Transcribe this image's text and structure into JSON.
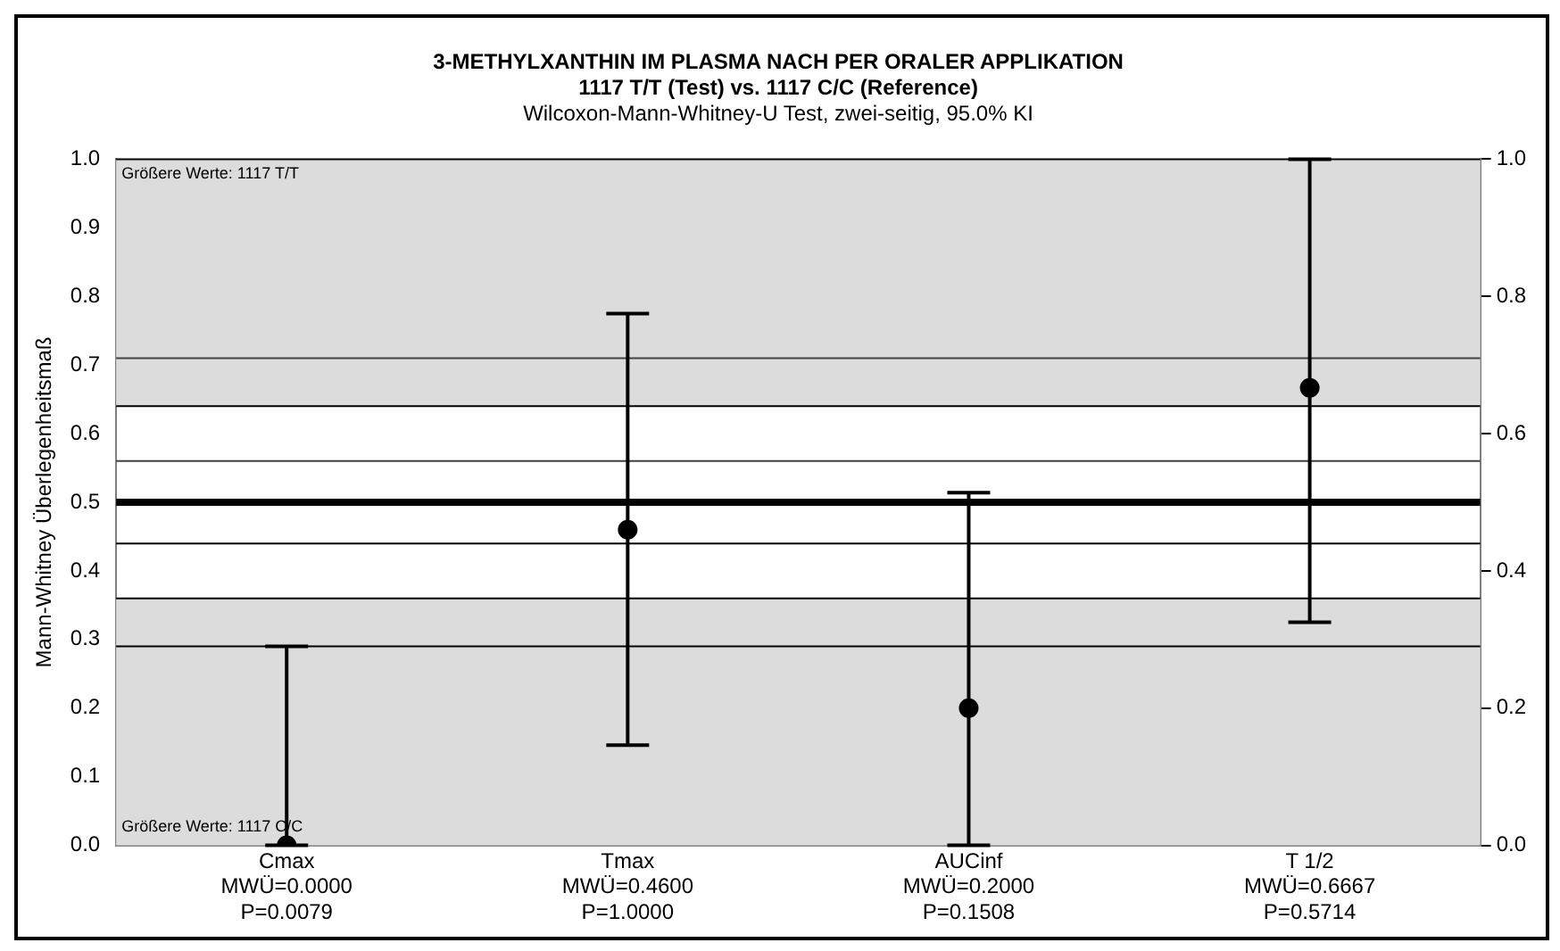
{
  "chart_data": {
    "type": "scatter",
    "title": "3-METHYLXANTHIN IM PLASMA NACH PER ORALER APPLIKATION\n1117 T/T (Test) vs. 1117 C/C (Reference)",
    "subtitle": "Wilcoxon-Mann-Whitney-U Test, zwei-seitig, 95.0% KI",
    "ylabel": "Mann-Whitney Überlegenheitsmaß",
    "categories": [
      "Cmax\nMWÜ=0.0000\nP=0.0079",
      "Tmax\nMWÜ=0.4600\nP=1.0000",
      "AUCinf\nMWÜ=0.2000\nP=0.1508",
      "T 1/2\nMWÜ=0.6667\nP=0.5714"
    ],
    "values": [
      0,
      0.46,
      0.2,
      0.6667
    ],
    "errors": [
      [
        0,
        0.29
      ],
      [
        0.146,
        0.775
      ],
      [
        0,
        0.514
      ],
      [
        0.325,
        1.0
      ]
    ],
    "color": "#000000",
    "marker": "circle",
    "ylim": [
      0,
      1
    ],
    "yticks": [
      {
        "value": 0,
        "label": "0.0"
      },
      {
        "value": 0.1,
        "label": "0.1"
      },
      {
        "value": 0.2,
        "label": "0.2"
      },
      {
        "value": 0.3,
        "label": "0.3"
      },
      {
        "value": 0.4,
        "label": "0.4"
      },
      {
        "value": 0.5,
        "label": "0.5"
      },
      {
        "value": 0.6,
        "label": "0.6"
      },
      {
        "value": 0.7,
        "label": "0.7"
      },
      {
        "value": 0.8,
        "label": "0.8"
      },
      {
        "value": 0.9,
        "label": "0.9"
      },
      {
        "value": 1,
        "label": "1.0"
      }
    ],
    "y2lim": [
      0,
      1
    ],
    "y2ticks": [
      {
        "value": 0,
        "label": "0.0"
      },
      {
        "value": 0.2,
        "label": "0.2"
      },
      {
        "value": 0.4,
        "label": "0.4"
      },
      {
        "value": 0.6,
        "label": "0.6"
      },
      {
        "value": 0.8,
        "label": "0.8"
      },
      {
        "value": 1,
        "label": "1.0"
      }
    ],
    "bands": [
      {
        "axis": "y",
        "from": 0.64,
        "to": 1.0,
        "color": "#dcdcdc"
      },
      {
        "axis": "y",
        "from": 0,
        "to": 0.36,
        "color": "#dcdcdc"
      }
    ],
    "ref_lines": [
      {
        "axis": "y",
        "value": 0.71,
        "color": "#404040"
      },
      {
        "axis": "y",
        "value": 0.64,
        "color": "#000000"
      },
      {
        "axis": "y",
        "value": 0.56,
        "color": "#404040"
      },
      {
        "axis": "y",
        "value": 0.5,
        "color": "#000000"
      },
      {
        "axis": "y",
        "value": 0.44,
        "color": "#000000"
      },
      {
        "axis": "y",
        "value": 0.36,
        "color": "#000000"
      },
      {
        "axis": "y",
        "value": 0.29,
        "color": "#000000"
      }
    ],
    "annotations": [
      "Größere Werte: 1117 T/T",
      "Größere Werte: 1117 C/C"
    ],
    "legend": false,
    "grid": false
  }
}
